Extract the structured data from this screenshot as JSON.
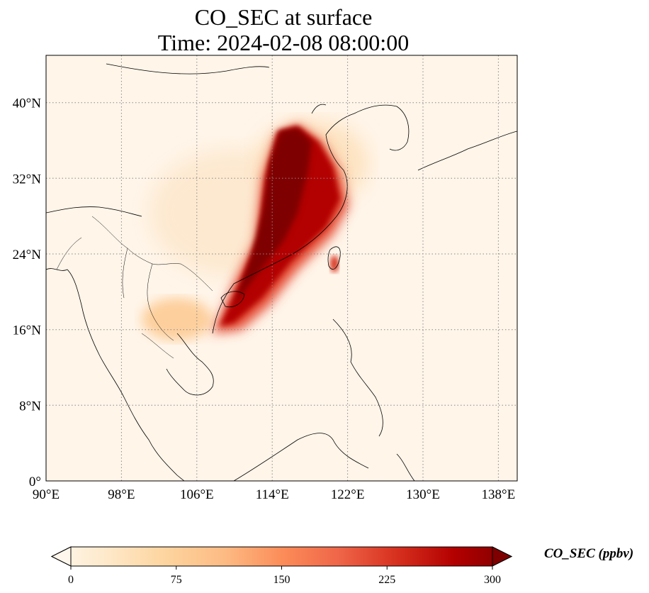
{
  "title": {
    "line1": "CO_SEC at surface",
    "line2": "Time: 2024-02-08 08:00:00"
  },
  "map": {
    "projection": "PlateCarree",
    "lon_range": [
      90,
      140
    ],
    "lat_range": [
      0,
      45
    ],
    "lon_ticks": [
      {
        "value": 90,
        "label": "90°E"
      },
      {
        "value": 98,
        "label": "98°E"
      },
      {
        "value": 106,
        "label": "106°E"
      },
      {
        "value": 114,
        "label": "114°E"
      },
      {
        "value": 122,
        "label": "122°E"
      },
      {
        "value": 130,
        "label": "130°E"
      },
      {
        "value": 138,
        "label": "138°E"
      }
    ],
    "lat_ticks": [
      {
        "value": 0,
        "label": "0°"
      },
      {
        "value": 8,
        "label": "8°N"
      },
      {
        "value": 16,
        "label": "16°N"
      },
      {
        "value": 24,
        "label": "24°N"
      },
      {
        "value": 32,
        "label": "32°N"
      },
      {
        "value": 40,
        "label": "40°N"
      }
    ],
    "gridlines": "dotted",
    "coastlines": true,
    "borders": true
  },
  "colorbar": {
    "label": "CO_SEC (ppbv)",
    "min": 0,
    "max": 300,
    "ticks": [
      {
        "value": 0,
        "label": "0"
      },
      {
        "value": 75,
        "label": "75"
      },
      {
        "value": 150,
        "label": "150"
      },
      {
        "value": 225,
        "label": "225"
      },
      {
        "value": 300,
        "label": "300"
      }
    ],
    "colormap": "OrRd",
    "extend": "both",
    "colors": [
      "#fff7ec",
      "#fee8c8",
      "#fdd49e",
      "#fdbb84",
      "#fc8d59",
      "#ef6548",
      "#d7301f",
      "#b30000",
      "#7f0000"
    ]
  },
  "field": {
    "description_values_ppbv": [
      {
        "lon": 115.5,
        "lat": 34.5,
        "value": 320
      },
      {
        "lon": 113.5,
        "lat": 27.0,
        "value": 300
      },
      {
        "lon": 117.5,
        "lat": 27.5,
        "value": 280
      },
      {
        "lon": 111.0,
        "lat": 21.5,
        "value": 290
      },
      {
        "lon": 119.5,
        "lat": 31.0,
        "value": 230
      },
      {
        "lon": 108.5,
        "lat": 17.5,
        "value": 240
      },
      {
        "lon": 120.3,
        "lat": 23.0,
        "value": 200
      },
      {
        "lon": 103.5,
        "lat": 16.5,
        "value": 90
      },
      {
        "lon": 105.0,
        "lat": 30.0,
        "value": 40
      }
    ]
  }
}
